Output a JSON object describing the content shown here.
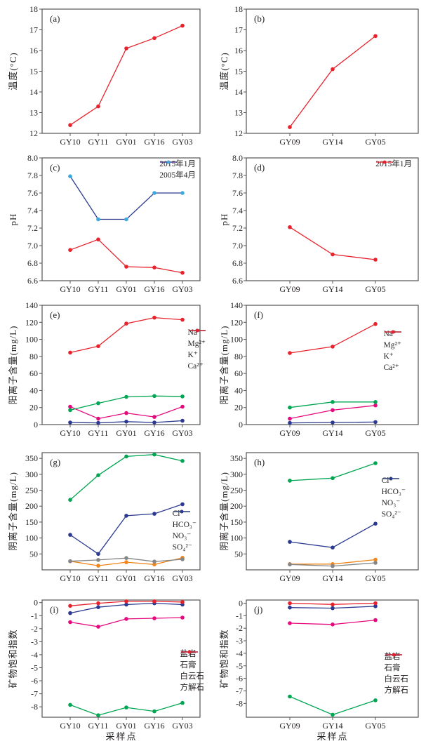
{
  "figure": {
    "xlabel": "采样点"
  },
  "colors": {
    "red": "#e8222d",
    "magenta": "#e5097f",
    "green": "#00a651",
    "navy": "#2b3990",
    "orange": "#f08519",
    "gray": "#848688",
    "cyan": "#3fa9dc"
  },
  "chart_data": [
    {
      "id": "a",
      "label": "(a)",
      "type": "line",
      "ylabel": "温度(°C)",
      "categories": [
        "GY10",
        "GY11",
        "GY01",
        "GY16",
        "GY03"
      ],
      "ylim": [
        12,
        18
      ],
      "yticks": [
        12,
        13,
        14,
        15,
        16,
        17,
        18
      ],
      "tick_decimals": 0,
      "legend": false,
      "series": [
        {
          "name": "温度",
          "color": "red",
          "values": [
            12.4,
            13.3,
            16.1,
            16.6,
            17.2
          ]
        }
      ]
    },
    {
      "id": "b",
      "label": "(b)",
      "type": "line",
      "ylabel": "温度(°C)",
      "categories": [
        "GY09",
        "GY14",
        "GY05"
      ],
      "ylim": [
        12,
        18
      ],
      "yticks": [
        12,
        13,
        14,
        15,
        16,
        17,
        18
      ],
      "tick_decimals": 0,
      "legend": false,
      "series": [
        {
          "name": "温度",
          "color": "red",
          "values": [
            12.3,
            15.1,
            16.7
          ]
        }
      ]
    },
    {
      "id": "c",
      "label": "(c)",
      "type": "line",
      "ylabel": "pH",
      "categories": [
        "GY10",
        "GY11",
        "GY01",
        "GY16",
        "GY03"
      ],
      "ylim": [
        6.6,
        8.0
      ],
      "yticks": [
        6.6,
        6.8,
        7.0,
        7.2,
        7.4,
        7.6,
        7.8,
        8.0
      ],
      "tick_decimals": 1,
      "legend": true,
      "series": [
        {
          "name": "2015年1月",
          "color": "red",
          "values": [
            6.95,
            7.07,
            6.76,
            6.75,
            6.69
          ]
        },
        {
          "name": "2005年4月",
          "color": "navy",
          "marker_color": "cyan",
          "values": [
            7.79,
            7.3,
            7.3,
            7.6,
            7.6
          ]
        }
      ]
    },
    {
      "id": "d",
      "label": "(d)",
      "type": "line",
      "ylabel": "pH",
      "categories": [
        "GY09",
        "GY14",
        "GY05"
      ],
      "ylim": [
        6.6,
        8.0
      ],
      "yticks": [
        6.6,
        6.8,
        7.0,
        7.2,
        7.4,
        7.6,
        7.8,
        8.0
      ],
      "tick_decimals": 1,
      "legend": true,
      "series": [
        {
          "name": "2015年1月",
          "color": "red",
          "values": [
            7.21,
            6.9,
            6.84
          ]
        }
      ]
    },
    {
      "id": "e",
      "label": "(e)",
      "type": "line",
      "ylabel": "阳离子含量(mg/L)",
      "categories": [
        "GY10",
        "GY11",
        "GY01",
        "GY16",
        "GY03"
      ],
      "ylim": [
        0,
        140
      ],
      "yticks": [
        0,
        20,
        40,
        60,
        80,
        100,
        120,
        140
      ],
      "tick_decimals": 0,
      "legend": true,
      "series": [
        {
          "name": "Na⁺",
          "color": "magenta",
          "values": [
            21,
            7,
            13.5,
            9,
            21
          ]
        },
        {
          "name": "Mg²⁺",
          "color": "green",
          "values": [
            17,
            25,
            32.5,
            33.5,
            33
          ]
        },
        {
          "name": "K⁺",
          "color": "navy",
          "values": [
            2.5,
            2,
            3.5,
            2.5,
            4.5
          ]
        },
        {
          "name": "Ca²⁺",
          "color": "red",
          "values": [
            84.5,
            92,
            118.5,
            125.5,
            123
          ]
        }
      ]
    },
    {
      "id": "f",
      "label": "(f)",
      "type": "line",
      "ylabel": "阳离子含量(mg/L)",
      "categories": [
        "GY09",
        "GY14",
        "GY05"
      ],
      "ylim": [
        0,
        140
      ],
      "yticks": [
        0,
        20,
        40,
        60,
        80,
        100,
        120,
        140
      ],
      "tick_decimals": 0,
      "legend": true,
      "series": [
        {
          "name": "Na⁺",
          "color": "magenta",
          "values": [
            7,
            17,
            22.5
          ]
        },
        {
          "name": "Mg²⁺",
          "color": "green",
          "values": [
            20,
            26.5,
            26.5
          ]
        },
        {
          "name": "K⁺",
          "color": "navy",
          "values": [
            2,
            2.5,
            3
          ]
        },
        {
          "name": "Ca²⁺",
          "color": "red",
          "values": [
            84,
            91.5,
            118
          ]
        }
      ]
    },
    {
      "id": "g",
      "label": "(g)",
      "type": "line",
      "ylabel": "阴离子含量(mg/L)",
      "categories": [
        "GY10",
        "GY11",
        "GY01",
        "GY16",
        "GY03"
      ],
      "ylim": [
        0,
        368
      ],
      "yticks": [
        50,
        100,
        150,
        200,
        250,
        300,
        350
      ],
      "tick_decimals": 0,
      "legend": true,
      "series": [
        {
          "name": "Cl⁻",
          "color": "orange",
          "values": [
            27,
            13,
            24,
            17,
            38
          ]
        },
        {
          "name": "HCO₃⁻",
          "color": "green",
          "values": [
            220,
            297,
            356,
            362,
            342
          ]
        },
        {
          "name": "NO₃⁻",
          "color": "gray",
          "values": [
            27,
            31,
            37,
            26,
            33
          ]
        },
        {
          "name": "SO₄²⁻",
          "color": "navy",
          "values": [
            110,
            50,
            170,
            176,
            206
          ]
        }
      ]
    },
    {
      "id": "h",
      "label": "(h)",
      "type": "line",
      "ylabel": "阴离子含量(mg/L)",
      "categories": [
        "GY09",
        "GY14",
        "GY05"
      ],
      "ylim": [
        0,
        368
      ],
      "yticks": [
        50,
        100,
        150,
        200,
        250,
        300,
        350
      ],
      "tick_decimals": 0,
      "legend": true,
      "series": [
        {
          "name": "Cl⁻",
          "color": "orange",
          "values": [
            18,
            18,
            32
          ]
        },
        {
          "name": "HCO₃⁻",
          "color": "green",
          "values": [
            280,
            288,
            335
          ]
        },
        {
          "name": "NO₃⁻",
          "color": "gray",
          "values": [
            17,
            12,
            22
          ]
        },
        {
          "name": "SO₄²⁻",
          "color": "navy",
          "values": [
            88,
            70,
            145
          ]
        }
      ]
    },
    {
      "id": "i",
      "label": "(i)",
      "type": "line",
      "ylabel": "矿物饱和指数",
      "categories": [
        "GY10",
        "GY11",
        "GY01",
        "GY16",
        "GY03"
      ],
      "ylim": [
        -8.8,
        0.2
      ],
      "yticks": [
        0,
        -1,
        -2,
        -3,
        -4,
        -5,
        -6,
        -7,
        -8
      ],
      "tick_decimals": 0,
      "legend": true,
      "series": [
        {
          "name": "盐岩",
          "color": "green",
          "values": [
            -7.85,
            -8.65,
            -8.05,
            -8.35,
            -7.7
          ]
        },
        {
          "name": "石膏",
          "color": "magenta",
          "values": [
            -1.5,
            -1.85,
            -1.25,
            -1.2,
            -1.15
          ]
        },
        {
          "name": "白云石",
          "color": "navy",
          "values": [
            -0.8,
            -0.35,
            -0.15,
            -0.05,
            -0.15
          ]
        },
        {
          "name": "方解石",
          "color": "red",
          "values": [
            -0.25,
            -0.05,
            0.1,
            0.1,
            0.05
          ]
        }
      ]
    },
    {
      "id": "j",
      "label": "(j)",
      "type": "line",
      "ylabel": "矿物饱和指数",
      "categories": [
        "GY09",
        "GY14",
        "GY05"
      ],
      "ylim": [
        -9.1,
        0.25
      ],
      "yticks": [
        0,
        -1,
        -2,
        -3,
        -4,
        -5,
        -6,
        -7,
        -8
      ],
      "tick_decimals": 0,
      "legend": true,
      "series": [
        {
          "name": "盐岩",
          "color": "green",
          "values": [
            -7.45,
            -8.9,
            -7.75
          ]
        },
        {
          "name": "石膏",
          "color": "magenta",
          "values": [
            -1.6,
            -1.7,
            -1.35
          ]
        },
        {
          "name": "白云石",
          "color": "navy",
          "values": [
            -0.35,
            -0.4,
            -0.25
          ]
        },
        {
          "name": "方解石",
          "color": "red",
          "values": [
            0.0,
            -0.1,
            0.0
          ]
        }
      ]
    }
  ]
}
